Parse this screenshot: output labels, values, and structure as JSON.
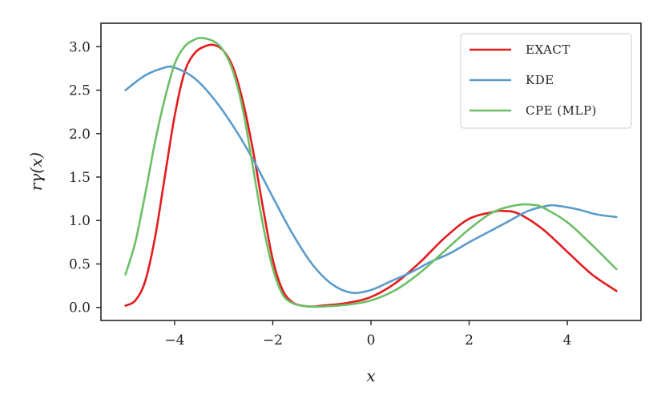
{
  "chart_data": {
    "type": "line",
    "xlabel": "x",
    "ylabel": "rγ(x)",
    "xlim": [
      -5.5,
      5.5
    ],
    "ylim": [
      -0.15,
      3.27
    ],
    "xticks": [
      -4,
      -2,
      0,
      2,
      4
    ],
    "xtick_labels": [
      "−4",
      "−2",
      "0",
      "2",
      "4"
    ],
    "yticks": [
      0.0,
      0.5,
      1.0,
      1.5,
      2.0,
      2.5,
      3.0
    ],
    "ytick_labels": [
      "0.0",
      "0.5",
      "1.0",
      "1.5",
      "2.0",
      "2.5",
      "3.0"
    ],
    "grid": false,
    "legend_position": "top-right",
    "series": [
      {
        "name": "EXACT",
        "color": "#e41a1c",
        "x": [
          -5.0,
          -4.8,
          -4.6,
          -4.4,
          -4.2,
          -4.0,
          -3.8,
          -3.6,
          -3.4,
          -3.2,
          -3.0,
          -2.8,
          -2.6,
          -2.4,
          -2.2,
          -2.0,
          -1.8,
          -1.6,
          -1.4,
          -1.2,
          -1.0,
          -0.5,
          0.0,
          0.5,
          1.0,
          1.5,
          2.0,
          2.5,
          2.7,
          3.0,
          3.5,
          4.0,
          4.5,
          5.0
        ],
        "y": [
          0.02,
          0.08,
          0.3,
          0.8,
          1.5,
          2.2,
          2.7,
          2.92,
          3.0,
          3.02,
          2.95,
          2.75,
          2.35,
          1.8,
          1.15,
          0.55,
          0.2,
          0.06,
          0.02,
          0.01,
          0.02,
          0.05,
          0.12,
          0.28,
          0.52,
          0.8,
          1.02,
          1.1,
          1.11,
          1.08,
          0.9,
          0.64,
          0.38,
          0.19
        ]
      },
      {
        "name": "KDE",
        "color": "#5b9bcb",
        "x": [
          -5.0,
          -4.6,
          -4.2,
          -4.0,
          -3.6,
          -3.2,
          -2.8,
          -2.4,
          -2.0,
          -1.6,
          -1.2,
          -0.8,
          -0.4,
          0.0,
          0.4,
          0.8,
          1.2,
          1.6,
          2.0,
          2.4,
          2.8,
          3.2,
          3.6,
          3.8,
          4.2,
          4.6,
          5.0
        ],
        "y": [
          2.5,
          2.67,
          2.76,
          2.76,
          2.64,
          2.4,
          2.08,
          1.7,
          1.27,
          0.85,
          0.5,
          0.27,
          0.17,
          0.2,
          0.3,
          0.4,
          0.52,
          0.62,
          0.75,
          0.87,
          0.99,
          1.11,
          1.17,
          1.17,
          1.13,
          1.07,
          1.04
        ]
      },
      {
        "name": "CPE (MLP)",
        "color": "#6cbf66",
        "x": [
          -5.0,
          -4.8,
          -4.6,
          -4.4,
          -4.2,
          -4.0,
          -3.8,
          -3.6,
          -3.45,
          -3.2,
          -3.0,
          -2.8,
          -2.6,
          -2.4,
          -2.2,
          -2.0,
          -1.8,
          -1.6,
          -1.4,
          -1.2,
          -1.0,
          -0.5,
          0.0,
          0.5,
          1.0,
          1.5,
          2.0,
          2.5,
          3.0,
          3.3,
          3.5,
          4.0,
          4.5,
          5.0
        ],
        "y": [
          0.38,
          0.75,
          1.3,
          1.9,
          2.4,
          2.8,
          3.0,
          3.08,
          3.1,
          3.06,
          2.95,
          2.7,
          2.25,
          1.6,
          0.95,
          0.45,
          0.15,
          0.05,
          0.02,
          0.01,
          0.01,
          0.03,
          0.08,
          0.2,
          0.4,
          0.65,
          0.9,
          1.1,
          1.18,
          1.18,
          1.15,
          0.98,
          0.72,
          0.44
        ]
      }
    ]
  }
}
